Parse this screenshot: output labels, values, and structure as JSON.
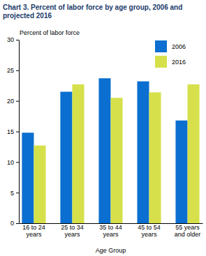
{
  "chart_data": {
    "type": "bar",
    "title": "Chart 3. Percent of labor force by age group, 2006 and projected 2016",
    "y_label": "Percent of labor force",
    "x_label": "Age Group",
    "categories": [
      "16 to 24 years",
      "25 to 34 years",
      "35 to 44 years",
      "45 to 54 years",
      "55 years and older"
    ],
    "series": [
      {
        "name": "2006",
        "color": "#0a6fd0",
        "values": [
          14.8,
          21.5,
          23.7,
          23.2,
          16.8
        ]
      },
      {
        "name": "2016",
        "color": "#d6e04a",
        "values": [
          12.7,
          22.7,
          20.5,
          21.4,
          22.7
        ]
      }
    ],
    "ylim": [
      0,
      30
    ],
    "yticks": [
      0,
      5,
      10,
      15,
      20,
      25,
      30
    ],
    "grid": false,
    "legend": "top-right"
  }
}
